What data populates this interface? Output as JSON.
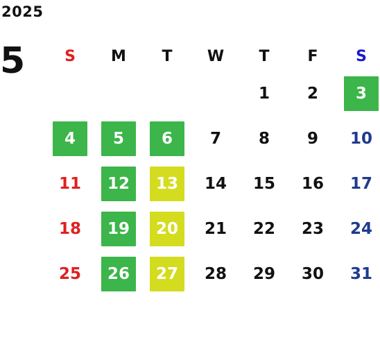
{
  "year": "2025",
  "month": "5",
  "weekdays": [
    "S",
    "M",
    "T",
    "W",
    "T",
    "F",
    "S"
  ],
  "colors": {
    "green": "#3cb54a",
    "yellow": "#d4dc1f",
    "sunday": "#e02020",
    "saturday": "#1f3a8f"
  },
  "days": [
    "",
    "",
    "",
    "",
    "1",
    "2",
    "3",
    "4",
    "5",
    "6",
    "7",
    "8",
    "9",
    "10",
    "11",
    "12",
    "13",
    "14",
    "15",
    "16",
    "17",
    "18",
    "19",
    "20",
    "21",
    "22",
    "23",
    "24",
    "25",
    "26",
    "27",
    "28",
    "29",
    "30",
    "31"
  ],
  "highlights": {
    "green": [
      "3",
      "4",
      "5",
      "6",
      "12",
      "19",
      "26"
    ],
    "yellow": [
      "13",
      "20",
      "27"
    ]
  }
}
